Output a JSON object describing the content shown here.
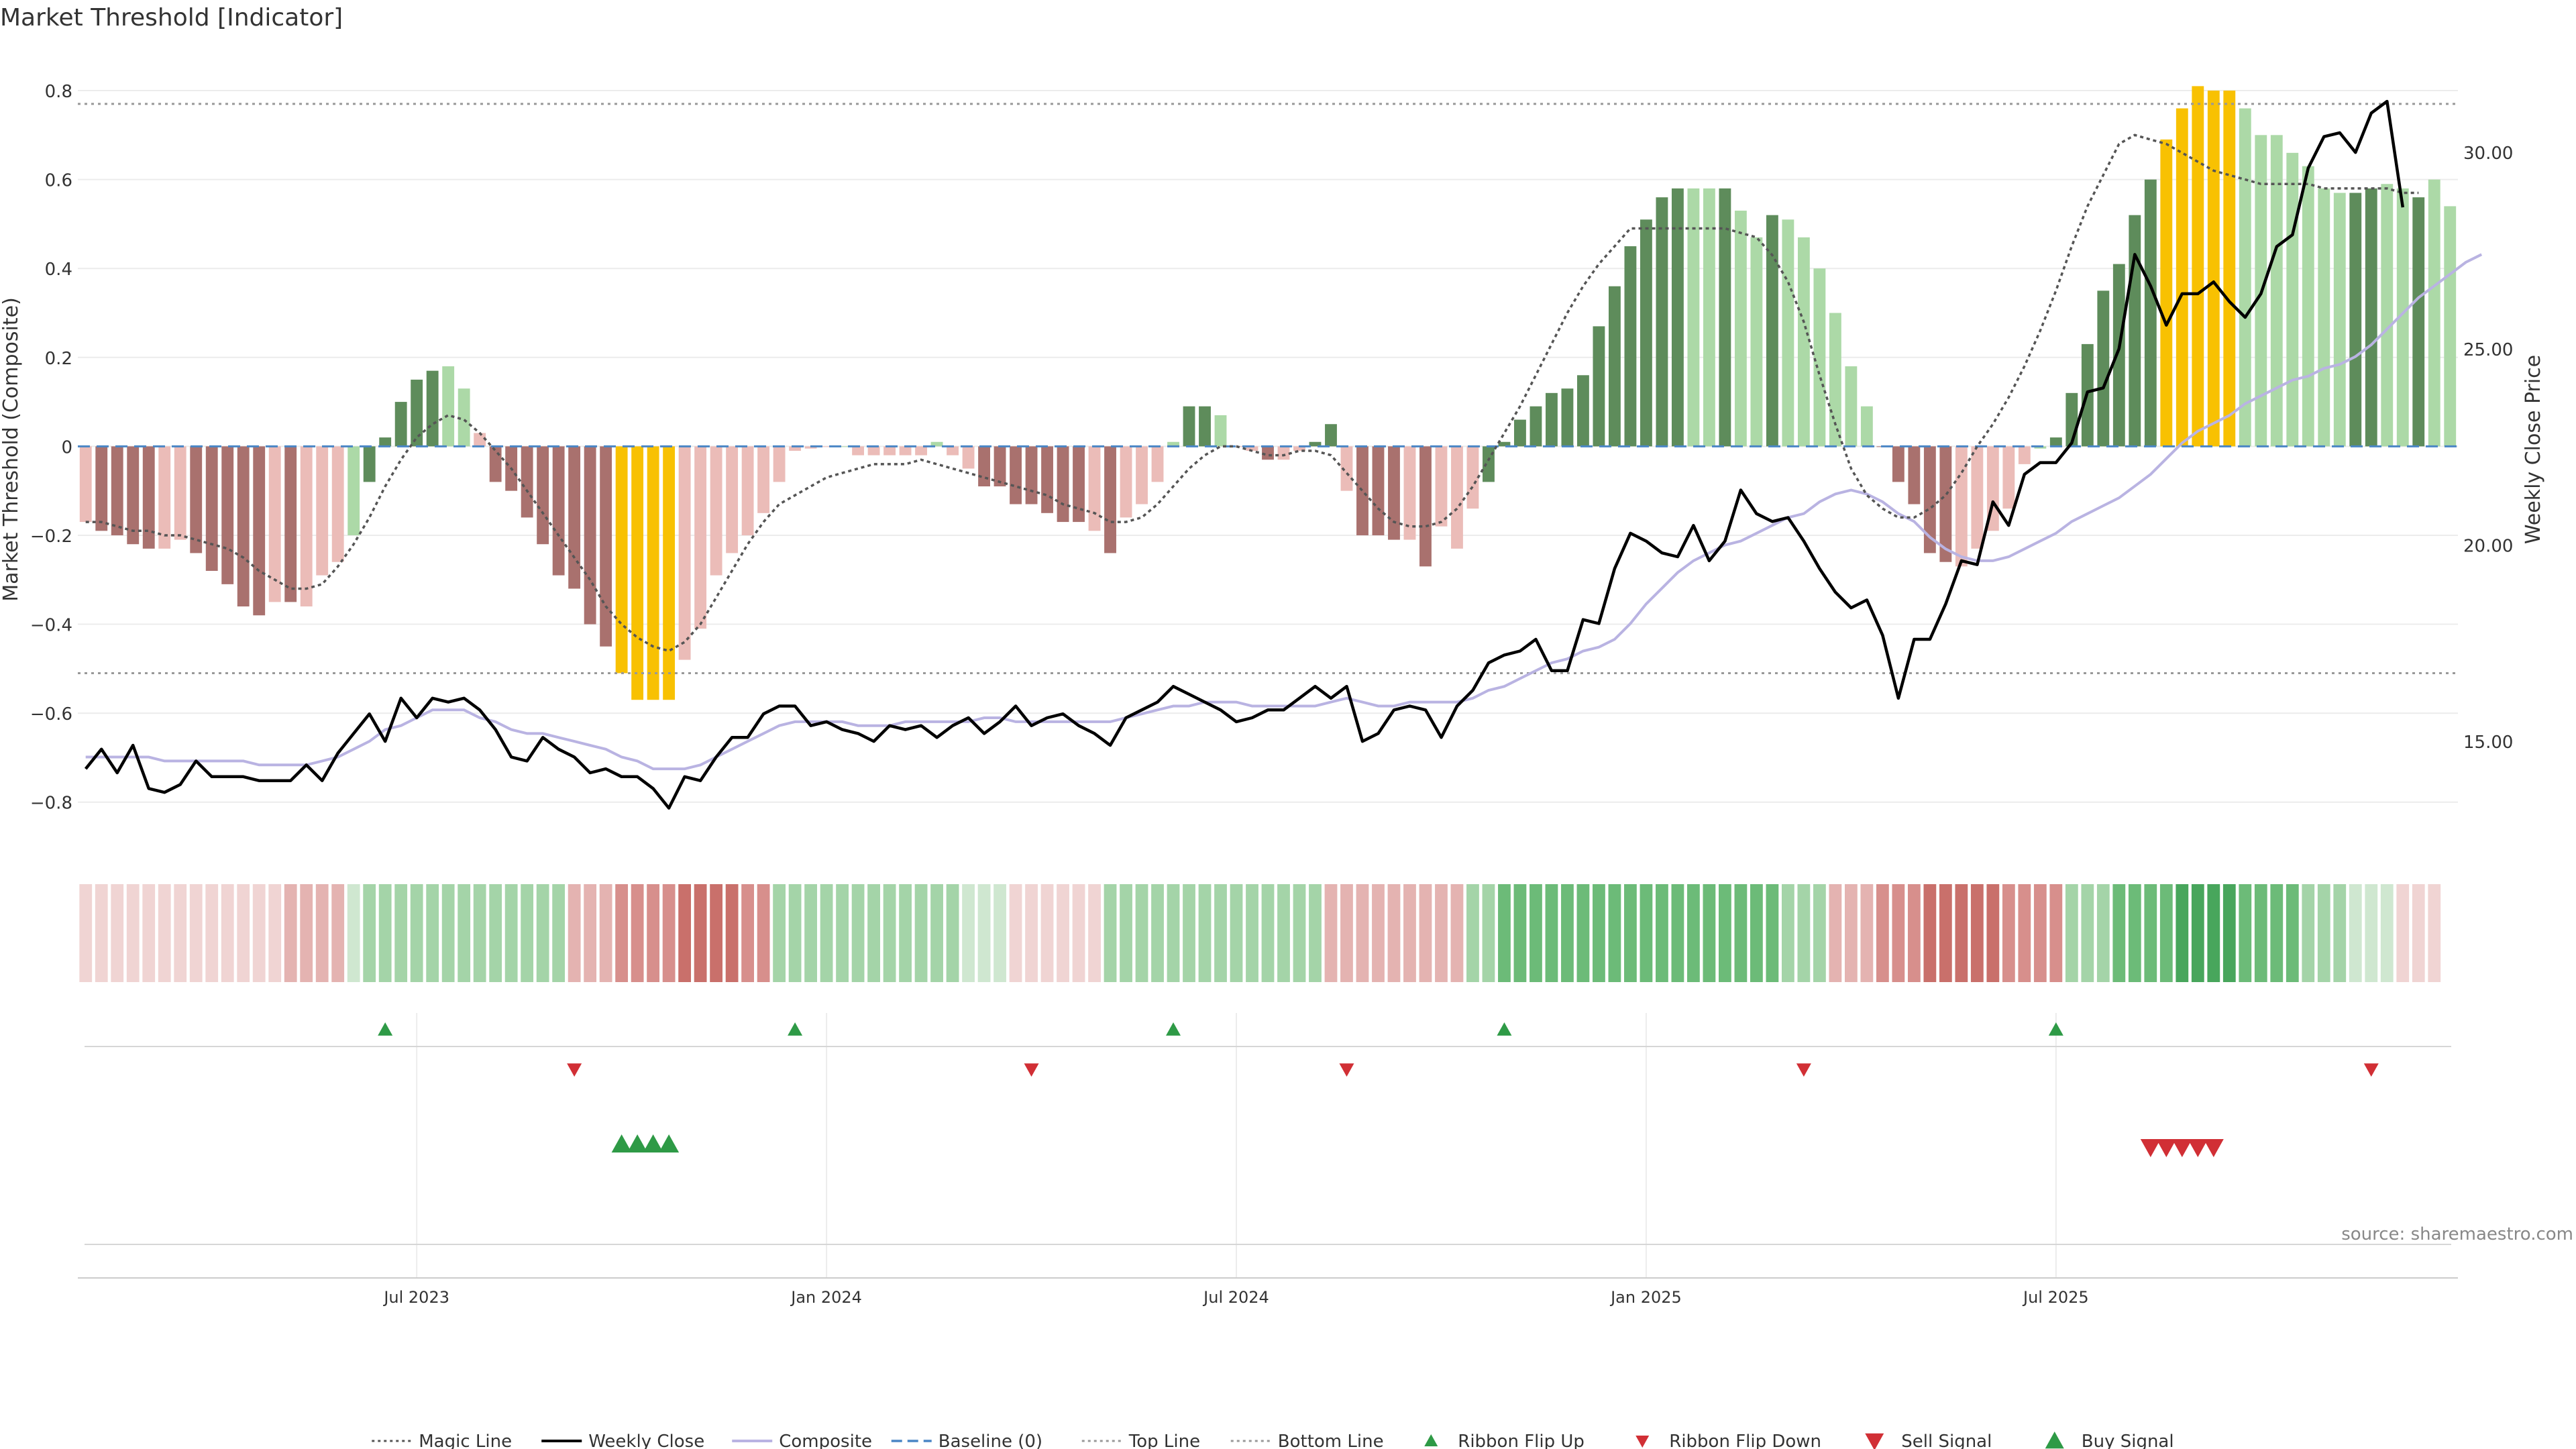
{
  "page": {
    "title": "Market Threshold [Indicator]",
    "source": "source: sharemaestro.com"
  },
  "colors": {
    "bar_pos_strong": "#5e8c5b",
    "bar_pos_light": "#acd9a7",
    "bar_neg_strong": "#a9716e",
    "bar_neg_light": "#ebbcb8",
    "bar_extreme": "#f8c102",
    "weekly_close": "#000000",
    "composite": "#b9b3e2",
    "baseline": "#4a86c5",
    "magic": "#555555",
    "threshold": "#999999",
    "signal_up": "#2e9a46",
    "signal_down": "#d12f35"
  },
  "chart_data": {
    "type": "bar",
    "title": "Market Threshold [Indicator]",
    "ylabel": "Market Threshold (Composite)",
    "y2label": "Weekly Close Price",
    "ylim": [
      -0.9,
      0.88
    ],
    "y2lim": [
      12.32,
      32.48
    ],
    "yticks": [
      "0.8",
      "0.6",
      "0.4",
      "0.2",
      "0",
      "−0.2",
      "−0.4",
      "−0.6",
      "−0.8"
    ],
    "y2ticks": [
      "30.00",
      "25.00",
      "20.00",
      "15.00"
    ],
    "xticks": [
      {
        "label": "Jul 2023",
        "x": 21
      },
      {
        "label": "Jan 2024",
        "x": 47
      },
      {
        "label": "Jul 2024",
        "x": 73
      },
      {
        "label": "Jan 2025",
        "x": 99
      },
      {
        "label": "Jul 2025",
        "x": 125
      }
    ],
    "top_line": 0.77,
    "bottom_line": -0.51,
    "baseline": 0,
    "composite_values": [
      -0.17,
      -0.19,
      -0.2,
      -0.22,
      -0.23,
      -0.23,
      -0.21,
      -0.24,
      -0.28,
      -0.31,
      -0.36,
      -0.38,
      -0.35,
      -0.35,
      -0.36,
      -0.29,
      -0.26,
      -0.2,
      -0.08,
      0.02,
      0.1,
      0.15,
      0.17,
      0.18,
      0.13,
      0.03,
      -0.08,
      -0.1,
      -0.16,
      -0.22,
      -0.29,
      -0.32,
      -0.4,
      -0.45,
      -0.51,
      -0.57,
      -0.57,
      -0.57,
      -0.48,
      -0.41,
      -0.29,
      -0.24,
      -0.2,
      -0.15,
      -0.08,
      -0.01,
      -0.005,
      0.0,
      0.0,
      -0.02,
      -0.02,
      -0.02,
      -0.02,
      -0.02,
      0.01,
      -0.02,
      -0.05,
      -0.09,
      -0.09,
      -0.13,
      -0.13,
      -0.15,
      -0.17,
      -0.17,
      -0.19,
      -0.24,
      -0.16,
      -0.13,
      -0.08,
      0.01,
      0.09,
      0.09,
      0.07,
      0.0,
      -0.01,
      -0.03,
      -0.03,
      -0.01,
      0.01,
      0.05,
      -0.1,
      -0.2,
      -0.2,
      -0.21,
      -0.21,
      -0.27,
      -0.18,
      -0.23,
      -0.14,
      -0.08,
      0.01,
      0.06,
      0.09,
      0.12,
      0.13,
      0.16,
      0.27,
      0.36,
      0.45,
      0.51,
      0.56,
      0.58,
      0.58,
      0.58,
      0.58,
      0.53,
      0.47,
      0.52,
      0.51,
      0.47,
      0.4,
      0.3,
      0.18,
      0.09,
      0.0,
      -0.08,
      -0.13,
      -0.24,
      -0.26,
      -0.27,
      -0.23,
      -0.19,
      -0.14,
      -0.04,
      -0.005,
      0.02,
      0.12,
      0.23,
      0.35,
      0.41,
      0.52,
      0.6,
      0.69,
      0.76,
      0.81,
      0.8,
      0.8,
      0.76,
      0.7,
      0.7,
      0.66,
      0.63,
      0.58,
      0.57,
      0.57,
      0.58,
      0.59,
      0.58,
      0.56,
      0.6,
      0.54
    ],
    "bar_colors": [
      "nl",
      "ns",
      "ns",
      "ns",
      "ns",
      "nl",
      "nl",
      "ns",
      "ns",
      "ns",
      "ns",
      "ns",
      "nl",
      "ns",
      "nl",
      "nl",
      "nl",
      "pl",
      "ps",
      "ps",
      "ps",
      "ps",
      "ps",
      "pl",
      "pl",
      "nl",
      "ns",
      "ns",
      "ns",
      "ns",
      "ns",
      "ns",
      "ns",
      "ns",
      "ex",
      "ex",
      "ex",
      "ex",
      "nl",
      "nl",
      "nl",
      "nl",
      "nl",
      "nl",
      "nl",
      "nl",
      "nl",
      "nl",
      "pl",
      "nl",
      "nl",
      "nl",
      "nl",
      "nl",
      "pl",
      "nl",
      "nl",
      "ns",
      "ns",
      "ns",
      "ns",
      "ns",
      "ns",
      "ns",
      "nl",
      "ns",
      "nl",
      "nl",
      "nl",
      "pl",
      "ps",
      "ps",
      "pl",
      "nl",
      "nl",
      "ns",
      "nl",
      "nl",
      "ps",
      "ps",
      "nl",
      "ns",
      "ns",
      "ns",
      "nl",
      "ns",
      "nl",
      "nl",
      "nl",
      "ps",
      "ps",
      "ps",
      "ps",
      "ps",
      "ps",
      "ps",
      "ps",
      "ps",
      "ps",
      "ps",
      "ps",
      "ps",
      "pl",
      "pl",
      "ps",
      "pl",
      "pl",
      "ps",
      "pl",
      "pl",
      "pl",
      "pl",
      "pl",
      "pl",
      "ns",
      "ns",
      "ns",
      "ns",
      "ns",
      "nl",
      "nl",
      "nl",
      "nl",
      "nl",
      "pl",
      "ps",
      "ps",
      "ps",
      "ps",
      "ps",
      "ps",
      "ps",
      "ex",
      "ex",
      "ex",
      "ex",
      "ex",
      "pl",
      "pl",
      "pl",
      "pl",
      "pl",
      "pl",
      "pl",
      "ps",
      "ps",
      "pl",
      "pl",
      "ps",
      "pl"
    ],
    "ribbon": [
      "-1",
      "-1",
      "-1",
      "-1",
      "-1",
      "-1",
      "-1",
      "-1",
      "-1",
      "-1",
      "-1",
      "-1",
      "-1",
      "-2",
      "-2",
      "-2",
      "-2",
      "+1",
      "+2",
      "+2",
      "+2",
      "+2",
      "+2",
      "+2",
      "+2",
      "+2",
      "+2",
      "+2",
      "+2",
      "+2",
      "+2",
      "-2",
      "-2",
      "-2",
      "-3",
      "-3",
      "-3",
      "-3",
      "-4",
      "-4",
      "-4",
      "-4",
      "-3",
      "-3",
      "+2",
      "+2",
      "+2",
      "+2",
      "+2",
      "+2",
      "+2",
      "+2",
      "+2",
      "+2",
      "+2",
      "+2",
      "+1",
      "+1",
      "+1",
      "-1",
      "-1",
      "-1",
      "-1",
      "-1",
      "-1",
      "+2",
      "+2",
      "+2",
      "+2",
      "+2",
      "+2",
      "+2",
      "+2",
      "+2",
      "+2",
      "+2",
      "+2",
      "+2",
      "+2",
      "-2",
      "-2",
      "-2",
      "-2",
      "-2",
      "-2",
      "-2",
      "-2",
      "-2",
      "+2",
      "+2",
      "+3",
      "+3",
      "+3",
      "+3",
      "+3",
      "+3",
      "+3",
      "+3",
      "+3",
      "+3",
      "+3",
      "+3",
      "+3",
      "+3",
      "+3",
      "+3",
      "+3",
      "+3",
      "+2",
      "+2",
      "+2",
      "-2",
      "-2",
      "-2",
      "-3",
      "-3",
      "-3",
      "-4",
      "-4",
      "-4",
      "-4",
      "-4",
      "-3",
      "-3",
      "-3",
      "-3",
      "+2",
      "+2",
      "+2",
      "+3",
      "+3",
      "+3",
      "+3",
      "+4",
      "+4",
      "+4",
      "+4",
      "+3",
      "+3",
      "+3",
      "+3",
      "+2",
      "+2",
      "+2",
      "+1",
      "+1",
      "+1",
      "-1",
      "-1",
      "-1"
    ],
    "weekly_close": [
      14.3,
      14.8,
      14.2,
      14.9,
      13.8,
      13.7,
      13.9,
      14.5,
      14.1,
      14.1,
      14.1,
      14.0,
      14.0,
      14.0,
      14.4,
      14.0,
      14.7,
      15.2,
      15.7,
      15.0,
      16.1,
      15.6,
      16.1,
      16.0,
      16.1,
      15.8,
      15.3,
      14.6,
      14.5,
      15.1,
      14.8,
      14.6,
      14.2,
      14.3,
      14.1,
      14.1,
      13.8,
      13.3,
      14.1,
      14.0,
      14.6,
      15.1,
      15.1,
      15.7,
      15.9,
      15.9,
      15.4,
      15.5,
      15.3,
      15.2,
      15.0,
      15.4,
      15.3,
      15.4,
      15.1,
      15.4,
      15.6,
      15.2,
      15.5,
      15.9,
      15.4,
      15.6,
      15.7,
      15.4,
      15.2,
      14.9,
      15.6,
      15.8,
      16.0,
      16.4,
      16.2,
      16.0,
      15.8,
      15.5,
      15.6,
      15.8,
      15.8,
      16.1,
      16.4,
      16.1,
      16.4,
      15.0,
      15.2,
      15.8,
      15.9,
      15.8,
      15.1,
      15.9,
      16.3,
      17.0,
      17.2,
      17.3,
      17.6,
      16.8,
      16.8,
      18.1,
      18.0,
      19.4,
      20.3,
      20.1,
      19.8,
      19.7,
      20.5,
      19.6,
      20.1,
      21.4,
      20.8,
      20.6,
      20.7,
      20.1,
      19.4,
      18.8,
      18.4,
      18.6,
      17.7,
      16.1,
      17.6,
      17.6,
      18.5,
      19.6,
      19.5,
      21.1,
      20.5,
      21.8,
      22.1,
      22.1,
      22.6,
      23.9,
      24.0,
      25.0,
      27.4,
      26.6,
      25.6,
      26.4,
      26.4,
      26.7,
      26.2,
      25.8,
      26.4,
      27.6,
      27.9,
      29.6,
      30.4,
      30.5,
      30.0,
      31.0,
      31.3,
      28.6
    ],
    "composite_line": [
      14.6,
      14.6,
      14.6,
      14.6,
      14.6,
      14.5,
      14.5,
      14.5,
      14.5,
      14.5,
      14.5,
      14.4,
      14.4,
      14.4,
      14.4,
      14.5,
      14.6,
      14.8,
      15.0,
      15.3,
      15.4,
      15.6,
      15.8,
      15.8,
      15.8,
      15.6,
      15.5,
      15.3,
      15.2,
      15.2,
      15.1,
      15.0,
      14.9,
      14.8,
      14.6,
      14.5,
      14.3,
      14.3,
      14.3,
      14.4,
      14.6,
      14.8,
      15.0,
      15.2,
      15.4,
      15.5,
      15.5,
      15.5,
      15.5,
      15.4,
      15.4,
      15.4,
      15.5,
      15.5,
      15.5,
      15.5,
      15.5,
      15.6,
      15.6,
      15.5,
      15.5,
      15.5,
      15.5,
      15.5,
      15.5,
      15.5,
      15.6,
      15.7,
      15.8,
      15.9,
      15.9,
      16.0,
      16.0,
      16.0,
      15.9,
      15.9,
      15.9,
      15.9,
      15.9,
      16.0,
      16.1,
      16.0,
      15.9,
      15.9,
      16.0,
      16.0,
      16.0,
      16.0,
      16.1,
      16.3,
      16.4,
      16.6,
      16.8,
      17.0,
      17.1,
      17.3,
      17.4,
      17.6,
      18.0,
      18.5,
      18.9,
      19.3,
      19.6,
      19.8,
      20.0,
      20.1,
      20.3,
      20.5,
      20.7,
      20.8,
      21.1,
      21.3,
      21.4,
      21.3,
      21.1,
      20.8,
      20.6,
      20.2,
      19.9,
      19.7,
      19.6,
      19.6,
      19.7,
      19.9,
      20.1,
      20.3,
      20.6,
      20.8,
      21.0,
      21.2,
      21.5,
      21.8,
      22.2,
      22.6,
      22.9,
      23.1,
      23.3,
      23.6,
      23.8,
      24.0,
      24.2,
      24.3,
      24.5,
      24.6,
      24.8,
      25.1,
      25.5,
      25.9,
      26.3,
      26.6,
      26.9,
      27.2,
      27.4
    ],
    "magic_line": [
      -0.17,
      -0.17,
      -0.18,
      -0.19,
      -0.19,
      -0.2,
      -0.2,
      -0.21,
      -0.22,
      -0.23,
      -0.25,
      -0.28,
      -0.3,
      -0.32,
      -0.32,
      -0.31,
      -0.27,
      -0.22,
      -0.16,
      -0.09,
      -0.03,
      0.02,
      0.05,
      0.07,
      0.06,
      0.03,
      -0.01,
      -0.05,
      -0.1,
      -0.15,
      -0.2,
      -0.25,
      -0.3,
      -0.36,
      -0.4,
      -0.43,
      -0.45,
      -0.46,
      -0.44,
      -0.4,
      -0.34,
      -0.28,
      -0.22,
      -0.17,
      -0.13,
      -0.11,
      -0.09,
      -0.07,
      -0.06,
      -0.05,
      -0.04,
      -0.04,
      -0.04,
      -0.03,
      -0.04,
      -0.05,
      -0.06,
      -0.07,
      -0.08,
      -0.09,
      -0.1,
      -0.11,
      -0.13,
      -0.14,
      -0.15,
      -0.17,
      -0.17,
      -0.16,
      -0.13,
      -0.09,
      -0.05,
      -0.02,
      0.0,
      0.0,
      -0.01,
      -0.02,
      -0.02,
      -0.01,
      -0.01,
      -0.02,
      -0.06,
      -0.1,
      -0.14,
      -0.17,
      -0.18,
      -0.18,
      -0.17,
      -0.14,
      -0.09,
      -0.03,
      0.03,
      0.09,
      0.16,
      0.23,
      0.3,
      0.36,
      0.41,
      0.45,
      0.49,
      0.49,
      0.49,
      0.49,
      0.49,
      0.49,
      0.49,
      0.48,
      0.47,
      0.43,
      0.37,
      0.28,
      0.16,
      0.05,
      -0.05,
      -0.11,
      -0.14,
      -0.16,
      -0.16,
      -0.14,
      -0.11,
      -0.06,
      0.0,
      0.05,
      0.11,
      0.18,
      0.26,
      0.35,
      0.45,
      0.54,
      0.61,
      0.68,
      0.7,
      0.69,
      0.68,
      0.66,
      0.64,
      0.62,
      0.61,
      0.6,
      0.59,
      0.59,
      0.59,
      0.59,
      0.58,
      0.58,
      0.58,
      0.58,
      0.58,
      0.57,
      0.57
    ],
    "ribbon_flip_up": [
      19,
      45,
      69,
      90,
      125
    ],
    "ribbon_flip_down": [
      31,
      60,
      80,
      109,
      145
    ],
    "buy_signal": [
      34,
      35,
      36,
      37
    ],
    "sell_signal": [
      131,
      132,
      133,
      134,
      135
    ]
  },
  "legend": {
    "placement": "bottom-center",
    "items": [
      {
        "label": "Magic Line",
        "kind": "dotted",
        "color": "#555555"
      },
      {
        "label": "Weekly Close",
        "kind": "solid",
        "color": "#000000"
      },
      {
        "label": "Composite",
        "kind": "solid",
        "color": "#b9b3e2"
      },
      {
        "label": "Baseline (0)",
        "kind": "dashed",
        "color": "#4a86c5"
      },
      {
        "label": "Top Line",
        "kind": "dotted",
        "color": "#999999"
      },
      {
        "label": "Bottom Line",
        "kind": "dotted",
        "color": "#999999"
      },
      {
        "label": "Ribbon Flip Up",
        "kind": "tri-up-small",
        "color": "#2e9a46"
      },
      {
        "label": "Ribbon Flip Down",
        "kind": "tri-down-small",
        "color": "#d12f35"
      },
      {
        "label": "Sell Signal",
        "kind": "tri-down",
        "color": "#d12f35"
      },
      {
        "label": "Buy Signal",
        "kind": "tri-up",
        "color": "#2e9a46"
      }
    ]
  }
}
